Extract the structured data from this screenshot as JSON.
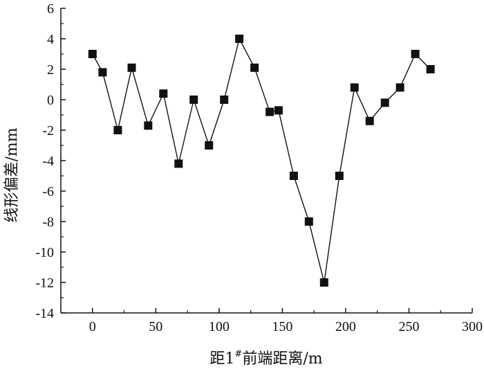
{
  "chart_data": {
    "type": "line",
    "markers": "square",
    "series": [
      {
        "name": "线形偏差",
        "x": [
          0,
          8,
          20,
          31,
          44,
          56,
          68,
          80,
          92,
          104,
          116,
          128,
          140,
          147,
          159,
          171,
          183,
          195,
          207,
          219,
          231,
          243,
          255,
          267
        ],
        "y": [
          3,
          1.8,
          -2,
          2.1,
          -1.7,
          0.4,
          -4.2,
          0,
          -3,
          0,
          4,
          2.1,
          -0.8,
          -0.7,
          -5,
          -8,
          -12,
          -5,
          0.8,
          -1.4,
          -0.2,
          0.8,
          3,
          2
        ]
      }
    ],
    "xlabel_prefix": "距1",
    "xlabel_sup": "#",
    "xlabel_suffix": "前端距离/m",
    "ylabel": "线形偏差/mm",
    "xlim": [
      -25,
      300
    ],
    "ylim": [
      -14,
      6
    ],
    "xticks": [
      0,
      50,
      100,
      150,
      200,
      250,
      300
    ],
    "yticks": [
      -14,
      -12,
      -10,
      -8,
      -6,
      -4,
      -2,
      0,
      2,
      4,
      6
    ],
    "grid": false,
    "colors": {
      "line": "#111111",
      "marker": "#111111",
      "axis": "#111111"
    }
  }
}
